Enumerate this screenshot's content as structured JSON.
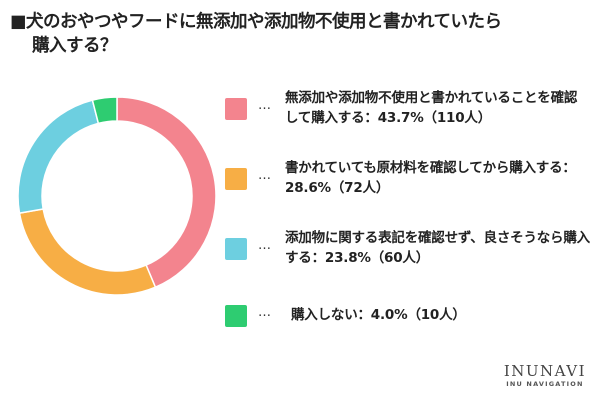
{
  "title": {
    "line1": "■犬のおやつやフードに無添加や添加物不使用と書かれていたら",
    "line2": "購入する？"
  },
  "chart_data": {
    "type": "pie",
    "subtype": "donut",
    "title": "犬のおやつやフードに無添加や添加物不使用と書かれていたら購入する？",
    "unit": "%",
    "slices": [
      {
        "label": "無添加や添加物不使用と書かれていることを確認して購入する",
        "value": 43.7,
        "count": "110人",
        "color": "#F3848E",
        "legend_text": "無添加や添加物不使用と書かれていることを確認して購入する：43.7%（110人）"
      },
      {
        "label": "書かれていても原材料を確認してから購入する",
        "value": 28.6,
        "count": "72人",
        "color": "#F7AE45",
        "legend_text": "書かれていても原材料を確認してから購入する：28.6%（72人）"
      },
      {
        "label": "添加物に関する表記を確認せず、良さそうなら購入する",
        "value": 23.8,
        "count": "60人",
        "color": "#6DCFE0",
        "legend_text": "添加物に関する表記を確認せず、良さそうなら購入する：23.8%（60人）"
      },
      {
        "label": "購入しない",
        "value": 4.0,
        "count": "10人",
        "color": "#2ECC71",
        "legend_text": "購入しない：4.0%（10人）"
      }
    ],
    "legend_position": "right"
  },
  "legend": {
    "marker": "…"
  },
  "logo": {
    "main": "INUNAVI",
    "sub": "INU NAVIGATION"
  }
}
